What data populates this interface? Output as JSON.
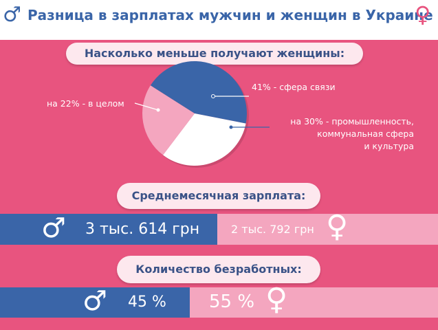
{
  "header": {
    "title": "Разница в зарплатах мужчин и женщин в Украине",
    "male_icon": "male-sign-icon",
    "female_icon": "female-sign-icon"
  },
  "pie_section": {
    "heading": "Насколько меньше получают женщины:",
    "labels": {
      "communications": "41% - сфера связи",
      "overall": "на 22% - в целом",
      "industry_line1": "на 30% - промышленность,",
      "industry_line2": "коммунальная сфера",
      "industry_line3": "и культура"
    }
  },
  "chart_data": {
    "type": "pie",
    "slices": [
      {
        "label": "41% - сфера связи",
        "value": 41,
        "color": "#3a65a8"
      },
      {
        "label": "на 30% - промышленность, коммунальная сфера и культура",
        "value": 30,
        "color": "#ffffff"
      },
      {
        "label": "на 22% - в целом",
        "value": 22,
        "color": "#f4a6bf"
      }
    ]
  },
  "salary_section": {
    "heading": "Среднемесячная зарплата:",
    "male_value": "3 тыс. 614 грн",
    "female_value": "2 тыс. 792 грн"
  },
  "unemployment_section": {
    "heading": "Количество безработных:",
    "male_value": "45 %",
    "female_value": "55 %",
    "male_share": 45,
    "female_share": 55
  },
  "symbols": {
    "male": "♂",
    "female": "♀"
  },
  "colors": {
    "background": "#e8547f",
    "male": "#3a65a8",
    "female_light": "#f4a6bf",
    "pill": "#fde8ee"
  }
}
